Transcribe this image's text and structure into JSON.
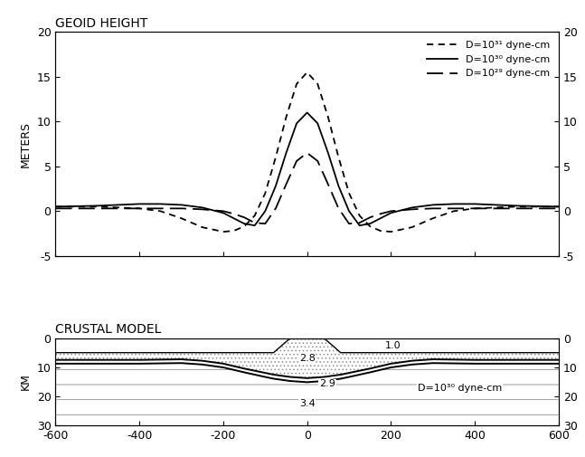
{
  "chart_data": [
    {
      "type": "line",
      "title": "GEOID HEIGHT",
      "ylabel": "METERS",
      "x": [
        -600,
        -500,
        -400,
        -350,
        -300,
        -250,
        -200,
        -175,
        -150,
        -125,
        -100,
        -75,
        -50,
        -25,
        0,
        25,
        50,
        75,
        100,
        125,
        150,
        175,
        200,
        250,
        300,
        350,
        400,
        500,
        600
      ],
      "series": [
        {
          "name": "D=10³¹ dyne-cm",
          "color": "#000000",
          "line_style": "dashed",
          "values": [
            0.5,
            0.5,
            0.3,
            0,
            -0.8,
            -1.8,
            -2.3,
            -2.2,
            -1.7,
            -0.5,
            2,
            6,
            10.5,
            14.2,
            15.5,
            14.2,
            10.5,
            6,
            2,
            -0.5,
            -1.7,
            -2.2,
            -2.3,
            -1.8,
            -0.8,
            0,
            0.3,
            0.5,
            0.5
          ]
        },
        {
          "name": "D=10³⁰ dyne-cm",
          "color": "#000000",
          "line_style": "solid",
          "values": [
            0.5,
            0.6,
            0.8,
            0.8,
            0.7,
            0.4,
            -0.2,
            -0.8,
            -1.4,
            -1.6,
            0,
            2.8,
            6.5,
            9.8,
            11,
            9.8,
            6.5,
            2.8,
            0,
            -1.6,
            -1.4,
            -0.8,
            -0.2,
            0.4,
            0.7,
            0.8,
            0.8,
            0.6,
            0.5
          ]
        },
        {
          "name": "D=10²⁹ dyne-cm",
          "color": "#000000",
          "line_style": "long_dashed",
          "values": [
            0.3,
            0.3,
            0.3,
            0.3,
            0.3,
            0.2,
            0,
            -0.3,
            -0.7,
            -1.3,
            -1.4,
            0.3,
            3,
            5.6,
            6.5,
            5.6,
            3,
            0.3,
            -1.4,
            -1.3,
            -0.7,
            -0.3,
            0,
            0.2,
            0.3,
            0.3,
            0.3,
            0.3,
            0.3
          ]
        }
      ],
      "xlim": [
        -600,
        600
      ],
      "xticks": [
        -600,
        -400,
        -200,
        0,
        200,
        400,
        600
      ],
      "ylim": [
        -5,
        20
      ],
      "yticks": [
        -5,
        0,
        5,
        10,
        15,
        20
      ],
      "y2lim": [
        -5,
        20
      ],
      "y2ticks": [
        -5,
        0,
        5,
        10,
        15,
        20
      ],
      "tick_labels": "y",
      "legend": "upper right"
    },
    {
      "type": "cross_section",
      "title": "CRUSTAL MODEL",
      "ylabel": "KM",
      "x": [
        -600,
        -400,
        -300,
        -250,
        -200,
        -150,
        -100,
        -80,
        -50,
        -40,
        0,
        40,
        50,
        80,
        100,
        150,
        200,
        250,
        300,
        400,
        600
      ],
      "layers": [
        {
          "label": "1.0",
          "bottom": [
            5,
            5,
            5,
            5,
            5,
            5,
            5,
            5,
            1.2,
            0,
            0,
            0,
            1.2,
            5,
            5,
            5,
            5,
            5,
            5,
            5,
            5
          ]
        },
        {
          "label": "2.8",
          "bottom": [
            7.5,
            7.5,
            7.3,
            7.8,
            8.8,
            10.5,
            12,
            12.6,
            13.2,
            13.4,
            13.8,
            13.4,
            13.2,
            12.6,
            12,
            10.5,
            8.8,
            7.8,
            7.3,
            7.5,
            7.5
          ]
        },
        {
          "label": "2.9",
          "bottom": [
            8.8,
            8.8,
            8.6,
            9.1,
            10.1,
            11.8,
            13.4,
            14,
            14.6,
            14.8,
            15.2,
            14.8,
            14.6,
            14,
            13.4,
            11.8,
            10.1,
            9.1,
            8.6,
            8.8,
            8.8
          ]
        },
        {
          "label": "3.4"
        }
      ],
      "annotation": "D=10³⁰ dyne-cm",
      "xlim": [
        -600,
        600
      ],
      "xticks": [
        -600,
        -400,
        -200,
        0,
        200,
        400,
        600
      ],
      "ylim": [
        30,
        0
      ],
      "yticks": [
        0,
        10,
        20,
        30
      ],
      "y2lim": [
        30,
        0
      ],
      "y2ticks": [
        0,
        10,
        20,
        30
      ]
    }
  ]
}
